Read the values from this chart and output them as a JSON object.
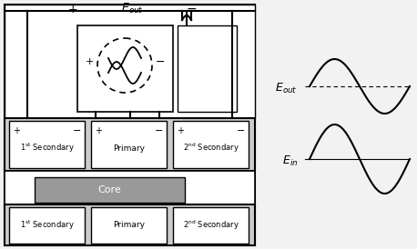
{
  "bg_color": "#f2f2f2",
  "white": "#ffffff",
  "gray": "#b0b0b0",
  "dark_gray": "#888888",
  "black": "#000000",
  "light_gray": "#cccccc",
  "core_gray": "#999999",
  "eout_label": "E$_\\mathregular{out}$",
  "ein_label": "E$_\\mathregular{in}$",
  "plus": "+",
  "minus": "−",
  "primary_label": "Primary",
  "first_sec_label": "1$^\\mathregular{st}$ Secondary",
  "second_sec_label": "2$^\\mathregular{nd}$ Secondary",
  "core_label": "Core",
  "fig_width": 4.58,
  "fig_height": 2.74,
  "dpi": 100
}
